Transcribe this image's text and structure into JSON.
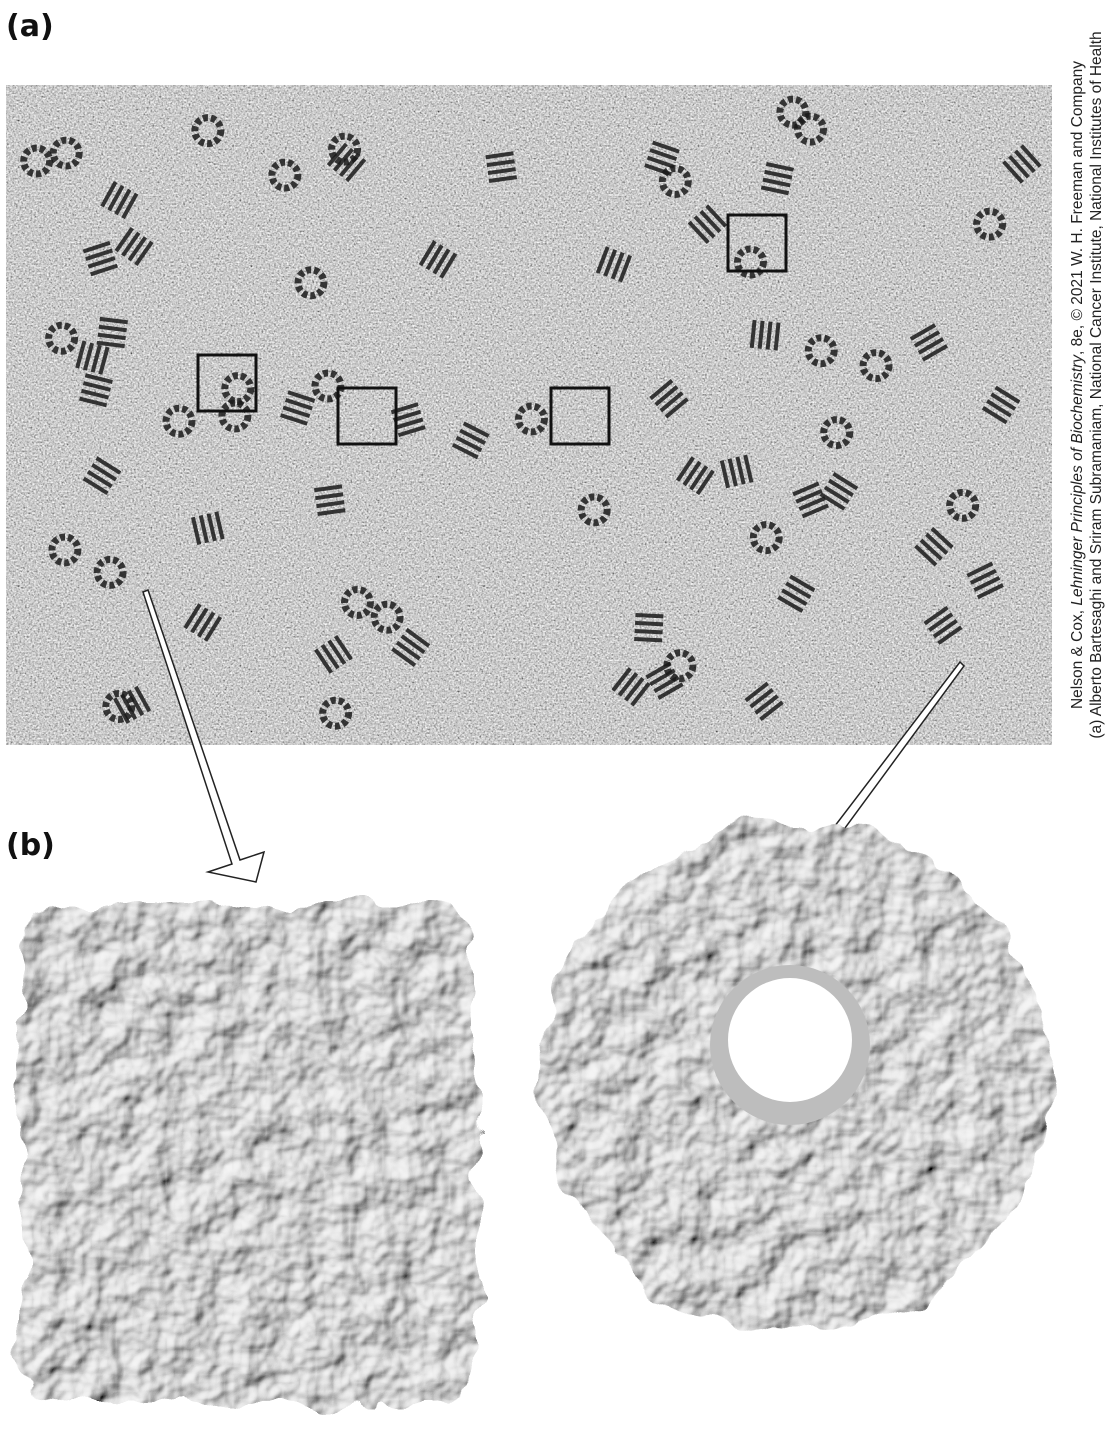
{
  "labels": {
    "a": "(a)",
    "b": "(b)"
  },
  "credit": {
    "line1": [
      "Nelson & Cox, ",
      "Lehninger Principles of Biochemistry",
      ", 8e, © 2021 W. H. Freeman and Company"
    ],
    "line2": "(a) Alberto Bartesaghi and Sriram Subramaniam, National Cancer Institute, National Institutes of Health"
  }
}
